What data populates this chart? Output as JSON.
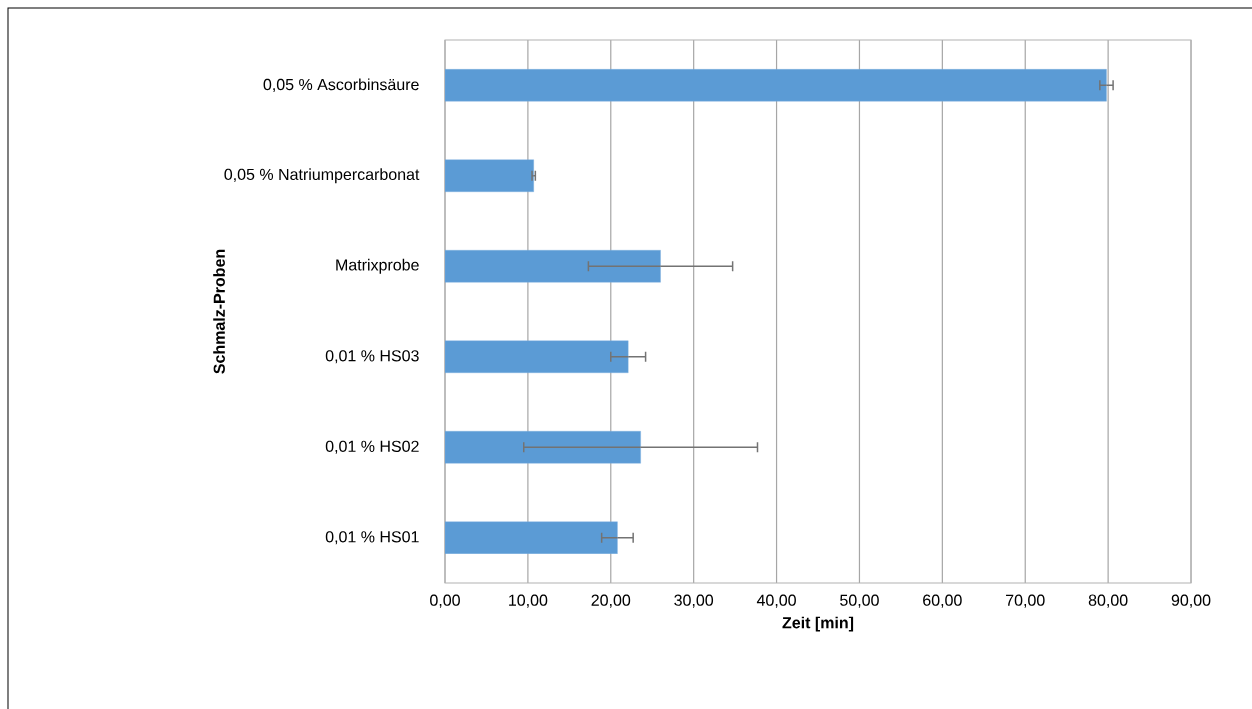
{
  "chart_data": {
    "type": "bar",
    "orientation": "horizontal",
    "xlabel": "Zeit [min]",
    "ylabel": "Schmalz-Proben",
    "categories": [
      "0,05 % Ascorbinsäure",
      "0,05 % Natriumpercarbonat",
      "Matrixprobe",
      "0,01 % HS03",
      "0,01 % HS02",
      "0,01 % HS01"
    ],
    "values": [
      79.8,
      10.7,
      26.0,
      22.1,
      23.6,
      20.8
    ],
    "errors": [
      0.8,
      0.2,
      8.7,
      2.1,
      14.1,
      1.9
    ],
    "color": "#5b9bd5",
    "xlim": [
      0,
      90
    ],
    "xticks": [
      {
        "value": 0,
        "label": "0,00"
      },
      {
        "value": 10,
        "label": "10,00"
      },
      {
        "value": 20,
        "label": "20,00"
      },
      {
        "value": 30,
        "label": "30,00"
      },
      {
        "value": 40,
        "label": "40,00"
      },
      {
        "value": 50,
        "label": "50,00"
      },
      {
        "value": 60,
        "label": "60,00"
      },
      {
        "value": 70,
        "label": "70,00"
      },
      {
        "value": 80,
        "label": "80,00"
      },
      {
        "value": 90,
        "label": "90,00"
      }
    ],
    "grid": "x"
  }
}
